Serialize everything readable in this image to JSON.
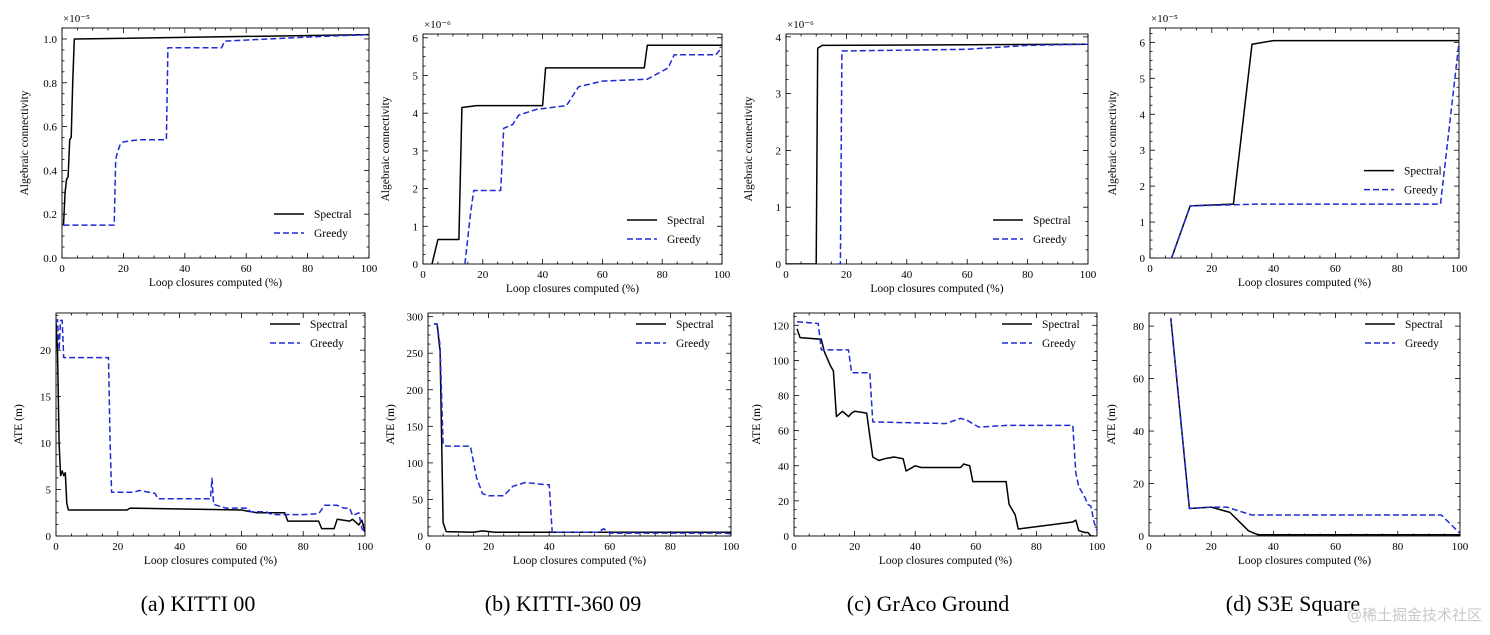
{
  "colors": {
    "spectral": "#000000",
    "greedy": "#1f2bd6",
    "axis": "#000000"
  },
  "legend_labels": {
    "spectral": "Spectral",
    "greedy": "Greedy"
  },
  "captions": [
    "(a) KITTI 00",
    "(b) KITTI-360 09",
    "(c) GrAco Ground",
    "(d) S3E Square"
  ],
  "watermark": "@稀土掘金技术社区",
  "chart_data": [
    {
      "id": "kitti00-connectivity",
      "type": "line",
      "xlabel": "Loop closures computed (%)",
      "ylabel": "Algebraic connectivity",
      "exponent": "×10⁻⁵",
      "xlim": [
        0,
        100
      ],
      "ylim": [
        0,
        1.05
      ],
      "xticks": [
        0,
        20,
        40,
        60,
        80,
        100
      ],
      "yticks": [
        0.0,
        0.2,
        0.4,
        0.6,
        0.8,
        1.0
      ],
      "yfmt": 1,
      "legend": "bottom-right",
      "series": [
        {
          "name": "Spectral",
          "x": [
            0.5,
            1,
            1.5,
            2,
            2.5,
            3,
            3.5,
            4,
            100
          ],
          "y": [
            0.15,
            0.3,
            0.36,
            0.37,
            0.54,
            0.55,
            0.8,
            1.0,
            1.02
          ]
        },
        {
          "name": "Greedy",
          "x": [
            0.5,
            17,
            17.5,
            18,
            19,
            20,
            25,
            34,
            34.5,
            52,
            53,
            82,
            100
          ],
          "y": [
            0.15,
            0.15,
            0.45,
            0.48,
            0.52,
            0.53,
            0.54,
            0.54,
            0.96,
            0.96,
            0.99,
            1.01,
            1.02
          ]
        }
      ]
    },
    {
      "id": "kitti360-connectivity",
      "type": "line",
      "xlabel": "Loop closures computed (%)",
      "ylabel": "Algebraic connectivity",
      "exponent": "×10⁻⁶",
      "xlim": [
        0,
        100
      ],
      "ylim": [
        0,
        6.1
      ],
      "xticks": [
        0,
        20,
        40,
        60,
        80,
        100
      ],
      "yticks": [
        0,
        1,
        2,
        3,
        4,
        5,
        6
      ],
      "yfmt": 0,
      "legend": "bottom-right",
      "series": [
        {
          "name": "Spectral",
          "x": [
            3,
            5,
            12,
            13,
            18,
            40,
            41,
            74,
            75,
            100
          ],
          "y": [
            0,
            0.65,
            0.65,
            4.15,
            4.2,
            4.2,
            5.2,
            5.2,
            5.8,
            5.8
          ]
        },
        {
          "name": "Greedy",
          "x": [
            14,
            16,
            17,
            26,
            27,
            30,
            32,
            38,
            48,
            52,
            60,
            75,
            82,
            84,
            98,
            100
          ],
          "y": [
            0,
            1.4,
            1.95,
            1.95,
            3.6,
            3.7,
            3.95,
            4.1,
            4.2,
            4.7,
            4.85,
            4.9,
            5.2,
            5.55,
            5.55,
            5.75
          ]
        }
      ]
    },
    {
      "id": "graco-connectivity",
      "type": "line",
      "xlabel": "Loop closures computed (%)",
      "ylabel": "Algebraic connectivity",
      "exponent": "×10⁻⁶",
      "xlim": [
        0,
        100
      ],
      "ylim": [
        0,
        4.05
      ],
      "xticks": [
        0,
        20,
        40,
        60,
        80,
        100
      ],
      "yticks": [
        0,
        1,
        2,
        3,
        4
      ],
      "yfmt": 0,
      "legend": "bottom-right",
      "series": [
        {
          "name": "Spectral",
          "x": [
            0,
            10,
            10.5,
            12,
            60,
            100
          ],
          "y": [
            0,
            0,
            3.8,
            3.85,
            3.86,
            3.87
          ]
        },
        {
          "name": "Greedy",
          "x": [
            17,
            18,
            18.5,
            60,
            80,
            100
          ],
          "y": [
            0,
            0,
            3.75,
            3.78,
            3.85,
            3.87
          ]
        }
      ]
    },
    {
      "id": "s3e-connectivity",
      "type": "line",
      "xlabel": "Loop closures computed (%)",
      "ylabel": "Algebraic connectivity",
      "exponent": "×10⁻⁵",
      "xlim": [
        0,
        100
      ],
      "ylim": [
        0,
        6.4
      ],
      "xticks": [
        0,
        20,
        40,
        60,
        80,
        100
      ],
      "yticks": [
        0,
        1,
        2,
        3,
        4,
        5,
        6
      ],
      "yfmt": 0,
      "legend": "middle-right",
      "series": [
        {
          "name": "Spectral",
          "x": [
            7,
            13,
            27,
            33,
            40,
            100
          ],
          "y": [
            0,
            1.45,
            1.5,
            5.95,
            6.05,
            6.05
          ]
        },
        {
          "name": "Greedy",
          "x": [
            7,
            13,
            35,
            94,
            100
          ],
          "y": [
            0,
            1.45,
            1.5,
            1.5,
            6.0
          ]
        }
      ]
    },
    {
      "id": "kitti00-ate",
      "type": "line",
      "xlabel": "Loop closures computed (%)",
      "ylabel": "ATE (m)",
      "xlim": [
        0,
        100
      ],
      "ylim": [
        0,
        24
      ],
      "xticks": [
        0,
        20,
        40,
        60,
        80,
        100
      ],
      "yticks": [
        0,
        5,
        10,
        15,
        20
      ],
      "yfmt": 0,
      "legend": "top-right",
      "series": [
        {
          "name": "Spectral",
          "x": [
            0,
            0.5,
            1,
            1.5,
            2,
            2.5,
            3,
            3.5,
            4,
            23,
            24,
            60,
            65,
            74,
            75,
            85,
            86,
            90,
            91,
            95,
            96,
            98,
            99,
            100
          ],
          "y": [
            23,
            20,
            10,
            6.5,
            7,
            6.5,
            6.8,
            3.5,
            2.8,
            2.8,
            3.0,
            2.8,
            2.5,
            2.5,
            1.6,
            1.6,
            0.8,
            0.8,
            1.8,
            1.6,
            1.8,
            1.2,
            1.7,
            0.4
          ]
        },
        {
          "name": "Greedy",
          "x": [
            0,
            0.5,
            1,
            1.5,
            2,
            2.5,
            17,
            17.5,
            18,
            25,
            27,
            32,
            33,
            50,
            50.5,
            51,
            52,
            55,
            62,
            63,
            68,
            70,
            80,
            85,
            87,
            91,
            93,
            95,
            96,
            98,
            99,
            100
          ],
          "y": [
            23,
            23.3,
            20,
            23.2,
            23.2,
            19.2,
            19.2,
            10,
            4.7,
            4.7,
            4.9,
            4.6,
            4.0,
            4.0,
            6.2,
            3.4,
            3.3,
            3.0,
            3.0,
            2.6,
            2.6,
            2.3,
            2.3,
            2.4,
            3.3,
            3.3,
            3.0,
            3.0,
            2.2,
            2.5,
            0.8,
            0.4
          ]
        }
      ]
    },
    {
      "id": "kitti360-ate",
      "type": "line",
      "xlabel": "Loop closures computed (%)",
      "ylabel": "ATE (m)",
      "xlim": [
        0,
        100
      ],
      "ylim": [
        0,
        305
      ],
      "xticks": [
        0,
        20,
        40,
        60,
        80,
        100
      ],
      "yticks": [
        0,
        50,
        100,
        150,
        200,
        250,
        300
      ],
      "yfmt": 0,
      "legend": "top-right",
      "series": [
        {
          "name": "Spectral",
          "x": [
            2,
            3,
            4,
            5,
            6,
            15,
            18,
            22,
            100
          ],
          "y": [
            290,
            290,
            252,
            18,
            6,
            5,
            7,
            5,
            5
          ]
        },
        {
          "name": "Greedy",
          "x": [
            2,
            3,
            4,
            5,
            6,
            14,
            16,
            18,
            20,
            25,
            28,
            32,
            35,
            39,
            40,
            41,
            56,
            58,
            60,
            98,
            100
          ],
          "y": [
            290,
            290,
            260,
            125,
            123,
            123,
            80,
            58,
            55,
            55,
            68,
            73,
            72,
            70,
            70,
            5,
            5,
            10,
            4,
            4,
            3
          ]
        }
      ]
    },
    {
      "id": "graco-ate",
      "type": "line",
      "xlabel": "Loop closures computed (%)",
      "ylabel": "ATE (m)",
      "xlim": [
        0,
        100
      ],
      "ylim": [
        0,
        127
      ],
      "xticks": [
        0,
        20,
        40,
        60,
        80,
        100
      ],
      "yticks": [
        0,
        20,
        40,
        60,
        80,
        100,
        120
      ],
      "yfmt": 0,
      "legend": "top-right",
      "series": [
        {
          "name": "Spectral",
          "x": [
            1,
            2,
            9,
            10,
            12,
            13,
            14,
            16,
            18,
            19,
            20,
            24,
            25,
            26,
            28,
            30,
            33,
            36,
            37,
            40,
            42,
            55,
            56,
            58,
            59,
            70,
            71,
            73,
            74,
            92,
            93,
            94,
            96,
            97,
            98,
            99
          ],
          "y": [
            118,
            113,
            112,
            105,
            97,
            94,
            68,
            71,
            68,
            70,
            71,
            70,
            57,
            45,
            43,
            44,
            45,
            44,
            37,
            40,
            39,
            39,
            41,
            40,
            31,
            31,
            18,
            12,
            4,
            8,
            9,
            3,
            2,
            2,
            0,
            0
          ]
        },
        {
          "name": "Greedy",
          "x": [
            1,
            8,
            9,
            18,
            19,
            25,
            26,
            50,
            55,
            57,
            60,
            61,
            70,
            92,
            93,
            94,
            96,
            97,
            98,
            99,
            100
          ],
          "y": [
            122,
            121,
            106,
            106,
            93,
            93,
            65,
            64,
            67,
            66,
            63,
            62,
            63,
            63,
            36,
            28,
            22,
            18,
            17,
            8,
            3
          ]
        }
      ]
    },
    {
      "id": "s3e-ate",
      "type": "line",
      "xlabel": "Loop closures computed (%)",
      "ylabel": "ATE (m)",
      "xlim": [
        0,
        100
      ],
      "ylim": [
        0,
        85
      ],
      "xticks": [
        0,
        20,
        40,
        60,
        80,
        100
      ],
      "yticks": [
        0,
        20,
        40,
        60,
        80
      ],
      "yfmt": 0,
      "legend": "top-right",
      "series": [
        {
          "name": "Spectral",
          "x": [
            7,
            13,
            20,
            26,
            32,
            35,
            100
          ],
          "y": [
            83,
            10.5,
            11,
            9,
            2,
            0.5,
            0.5
          ]
        },
        {
          "name": "Greedy",
          "x": [
            7,
            13,
            20,
            25,
            33,
            94,
            100
          ],
          "y": [
            83,
            10.5,
            11,
            11,
            8,
            8,
            1
          ]
        }
      ]
    }
  ]
}
